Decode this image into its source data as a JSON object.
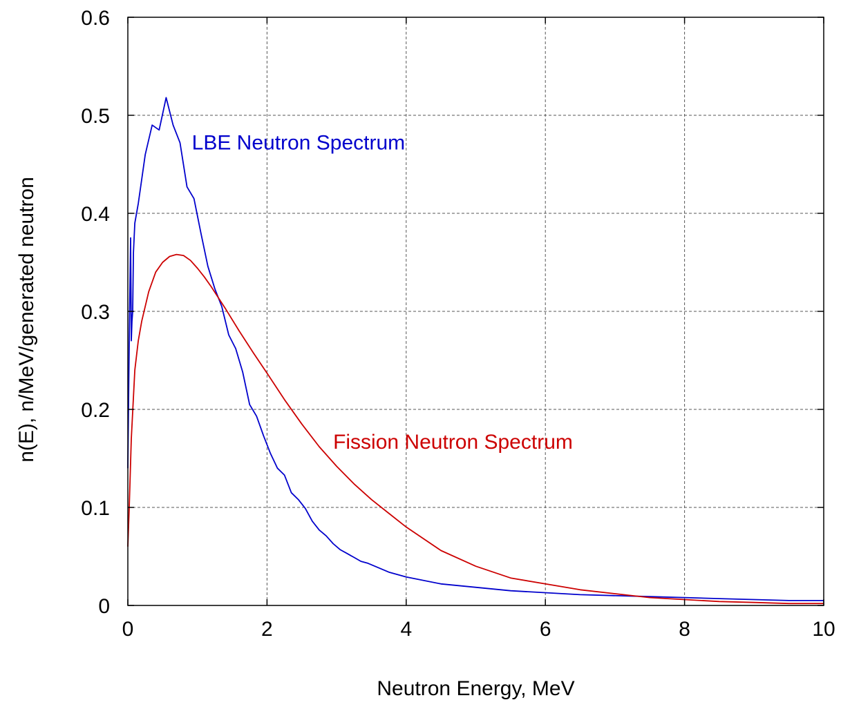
{
  "chart_data": {
    "type": "line",
    "title": "",
    "xlabel": "Neutron Energy, MeV",
    "ylabel": "n(E), n/MeV/generated neutron",
    "xlim": [
      0,
      10
    ],
    "ylim": [
      0,
      0.6
    ],
    "x_ticks": [
      0,
      2,
      4,
      6,
      8,
      10
    ],
    "y_ticks": [
      0,
      0.1,
      0.2,
      0.3,
      0.4,
      0.5,
      0.6
    ],
    "x_tick_labels": [
      "0",
      "2",
      "4",
      "6",
      "8",
      "10"
    ],
    "y_tick_labels": [
      "0",
      "0.1",
      "0.2",
      "0.3",
      "0.4",
      "0.5",
      "0.6"
    ],
    "grid": true,
    "legend": "none",
    "series": [
      {
        "name": "LBE Neutron Spectrum",
        "color": "#0000cc",
        "x": [
          0.0,
          0.02,
          0.04,
          0.05,
          0.06,
          0.07,
          0.08,
          0.1,
          0.15,
          0.25,
          0.35,
          0.45,
          0.55,
          0.65,
          0.75,
          0.85,
          0.95,
          1.05,
          1.15,
          1.25,
          1.35,
          1.45,
          1.55,
          1.65,
          1.75,
          1.85,
          1.95,
          2.05,
          2.15,
          2.25,
          2.35,
          2.45,
          2.55,
          2.65,
          2.75,
          2.85,
          2.95,
          3.05,
          3.15,
          3.25,
          3.35,
          3.45,
          3.55,
          3.75,
          4.0,
          4.5,
          5.5,
          6.5,
          7.5,
          8.5,
          9.5,
          10.0
        ],
        "y": [
          0.14,
          0.27,
          0.375,
          0.27,
          0.29,
          0.3,
          0.36,
          0.39,
          0.41,
          0.46,
          0.49,
          0.485,
          0.518,
          0.49,
          0.472,
          0.427,
          0.415,
          0.38,
          0.346,
          0.323,
          0.305,
          0.276,
          0.262,
          0.238,
          0.205,
          0.193,
          0.173,
          0.155,
          0.14,
          0.133,
          0.115,
          0.108,
          0.099,
          0.086,
          0.077,
          0.071,
          0.063,
          0.057,
          0.053,
          0.049,
          0.045,
          0.043,
          0.04,
          0.034,
          0.029,
          0.022,
          0.015,
          0.011,
          0.009,
          0.007,
          0.005,
          0.005
        ]
      },
      {
        "name": "Fission Neutron Spectrum",
        "color": "#cc0000",
        "x": [
          0.0,
          0.02,
          0.05,
          0.1,
          0.15,
          0.2,
          0.3,
          0.4,
          0.5,
          0.6,
          0.7,
          0.8,
          0.9,
          1.0,
          1.1,
          1.2,
          1.4,
          1.6,
          1.8,
          2.0,
          2.25,
          2.5,
          2.75,
          3.0,
          3.25,
          3.5,
          3.75,
          4.0,
          4.5,
          5.0,
          5.5,
          6.0,
          6.5,
          7.0,
          7.5,
          8.0,
          8.5,
          9.0,
          9.5,
          10.0
        ],
        "y": [
          0.06,
          0.1,
          0.17,
          0.24,
          0.27,
          0.29,
          0.32,
          0.34,
          0.35,
          0.356,
          0.358,
          0.357,
          0.352,
          0.344,
          0.335,
          0.325,
          0.303,
          0.28,
          0.258,
          0.237,
          0.21,
          0.185,
          0.162,
          0.142,
          0.124,
          0.108,
          0.094,
          0.08,
          0.056,
          0.04,
          0.028,
          0.022,
          0.016,
          0.012,
          0.008,
          0.006,
          0.004,
          0.003,
          0.002,
          0.002
        ]
      }
    ],
    "annotations": [
      {
        "text": "LBE Neutron Spectrum",
        "series": 0,
        "x": 0.92,
        "y": 0.465
      },
      {
        "text": "Fission Neutron Spectrum",
        "series": 1,
        "x": 2.95,
        "y": 0.16
      }
    ]
  }
}
